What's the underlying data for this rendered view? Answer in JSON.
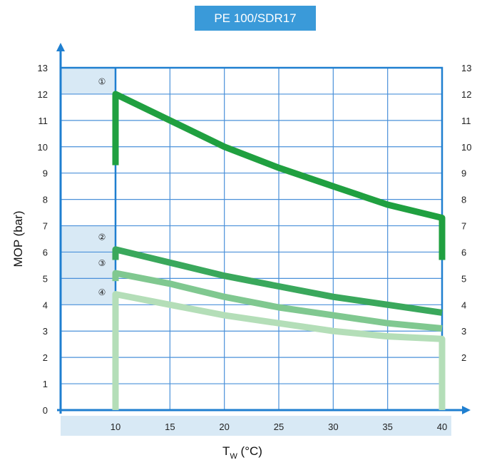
{
  "chart_data": {
    "type": "line",
    "title": "PE 100/SDR17",
    "xlabel_main": "T",
    "xlabel_sub": "W",
    "xlabel_unit": " (°C)",
    "ylabel": "MOP (bar)",
    "xlim": [
      10,
      40
    ],
    "ylim": [
      0,
      13
    ],
    "x_ticks": [
      "10",
      "15",
      "20",
      "25",
      "30",
      "35",
      "40"
    ],
    "y_ticks_left": [
      "0",
      "1",
      "2",
      "3",
      "4",
      "5",
      "6",
      "7",
      "8",
      "9",
      "10",
      "11",
      "12",
      "13"
    ],
    "y_ticks_right": [
      "2",
      "3",
      "4",
      "5",
      "6",
      "7",
      "8",
      "9",
      "10",
      "11",
      "12",
      "13"
    ],
    "grid": true,
    "markers": [
      {
        "label": "①",
        "y": 12.5
      },
      {
        "label": "②",
        "y": 6.6
      },
      {
        "label": "③",
        "y": 5.6
      },
      {
        "label": "④",
        "y": 4.5
      }
    ],
    "highlight_bands": [
      {
        "y0": 12,
        "y1": 13
      },
      {
        "y0": 4,
        "y1": 7
      }
    ],
    "series": [
      {
        "color": "#20a040",
        "x": [
          10,
          15,
          20,
          25,
          30,
          35,
          40
        ],
        "y": [
          12.0,
          11.0,
          10.0,
          9.2,
          8.5,
          7.8,
          7.3
        ],
        "start_drop": 9.3,
        "end_drop": 5.7
      },
      {
        "color": "#3aa85c",
        "x": [
          10,
          15,
          20,
          25,
          30,
          35,
          40
        ],
        "y": [
          6.1,
          5.6,
          5.1,
          4.7,
          4.3,
          4.0,
          3.7
        ],
        "start_drop": 5.7
      },
      {
        "color": "#80c890",
        "x": [
          10,
          15,
          20,
          25,
          30,
          35,
          40
        ],
        "y": [
          5.2,
          4.8,
          4.3,
          3.9,
          3.6,
          3.3,
          3.1
        ],
        "start_drop": 4.9
      },
      {
        "color": "#b4deb8",
        "x": [
          10,
          15,
          20,
          25,
          30,
          35,
          40
        ],
        "y": [
          4.4,
          4.0,
          3.6,
          3.3,
          3.0,
          2.8,
          2.7
        ],
        "start_drop": 0,
        "end_drop": 0
      }
    ]
  }
}
